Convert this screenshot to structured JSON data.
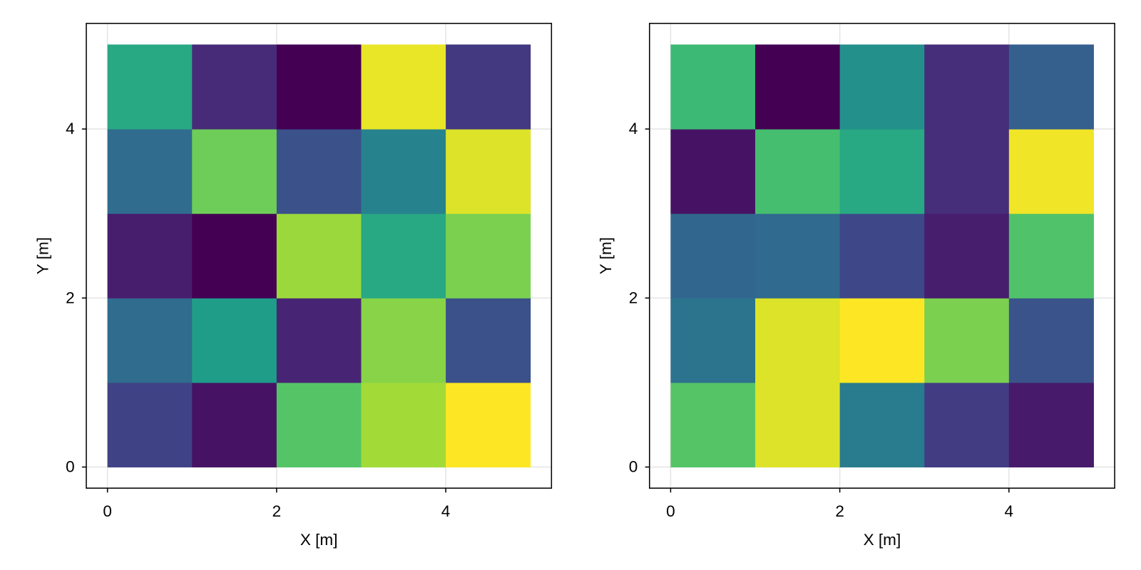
{
  "chart_data": [
    {
      "type": "heatmap",
      "xlabel": "X [m]",
      "ylabel": "Y [m]",
      "colormap": "viridis",
      "grid": true,
      "x_edges": [
        0,
        1,
        2,
        3,
        4,
        5
      ],
      "y_edges": [
        0,
        1,
        2,
        3,
        4,
        5
      ],
      "xlim": [
        -0.25,
        5.25
      ],
      "ylim": [
        -0.25,
        5.25
      ],
      "xticks": [
        0,
        2,
        4
      ],
      "yticks": [
        0,
        2,
        4
      ],
      "z": [
        [
          0.2,
          0.05,
          0.73,
          0.86,
          1.0
        ],
        [
          0.35,
          0.55,
          0.1,
          0.82,
          0.25
        ],
        [
          0.08,
          0.0,
          0.85,
          0.6,
          0.8
        ],
        [
          0.35,
          0.78,
          0.25,
          0.45,
          0.95
        ],
        [
          0.6,
          0.12,
          0.0,
          0.97,
          0.17
        ]
      ]
    },
    {
      "type": "heatmap",
      "xlabel": "X [m]",
      "ylabel": "Y [m]",
      "colormap": "viridis",
      "grid": true,
      "x_edges": [
        0,
        1,
        2,
        3,
        4,
        5
      ],
      "y_edges": [
        0,
        1,
        2,
        3,
        4,
        5
      ],
      "xlim": [
        -0.25,
        5.25
      ],
      "ylim": [
        -0.25,
        5.25
      ],
      "xticks": [
        0,
        2,
        4
      ],
      "yticks": [
        0,
        2,
        4
      ],
      "z": [
        [
          0.73,
          0.95,
          0.42,
          0.18,
          0.07
        ],
        [
          0.38,
          0.95,
          1.0,
          0.8,
          0.26
        ],
        [
          0.33,
          0.34,
          0.22,
          0.08,
          0.72
        ],
        [
          0.05,
          0.7,
          0.6,
          0.13,
          0.98
        ],
        [
          0.68,
          0.0,
          0.5,
          0.13,
          0.3
        ]
      ]
    }
  ]
}
